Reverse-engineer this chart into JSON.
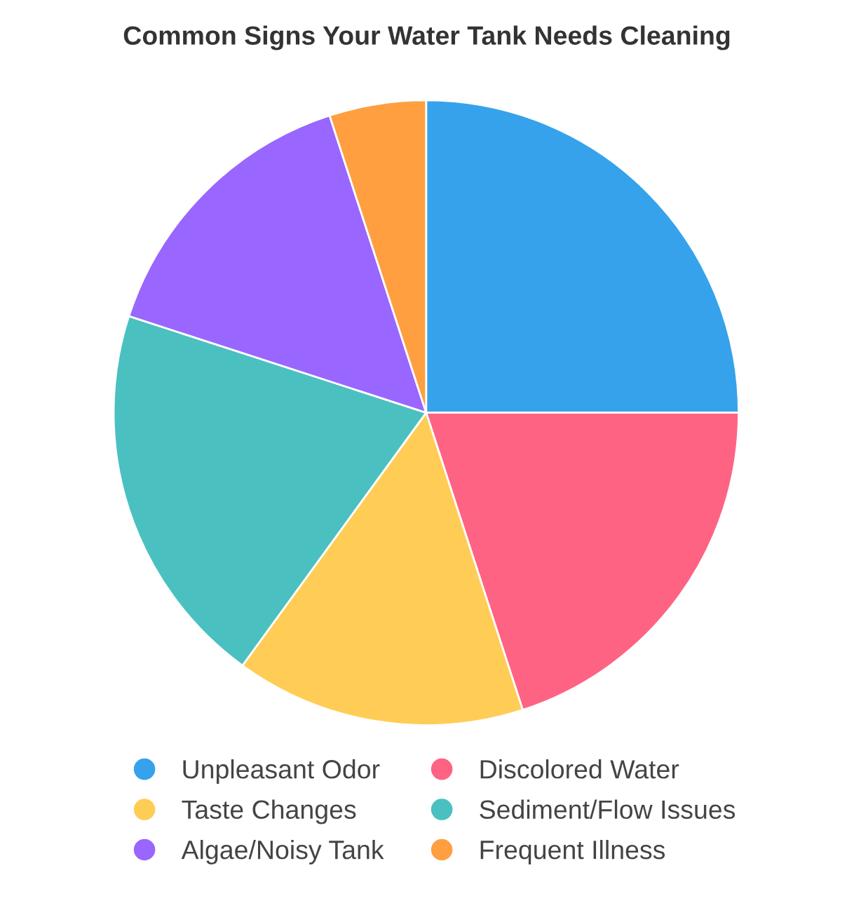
{
  "chart_data": {
    "type": "pie",
    "title": "Common Signs Your Water Tank Needs Cleaning",
    "categories": [
      "Unpleasant Odor",
      "Discolored Water",
      "Taste Changes",
      "Sediment/Flow Issues",
      "Algae/Noisy Tank",
      "Frequent Illness"
    ],
    "values": [
      25,
      20,
      15,
      20,
      15,
      5
    ],
    "colors": [
      "#36a2eb",
      "#ff6384",
      "#ffcd56",
      "#4bc0c0",
      "#9966ff",
      "#ff9f40"
    ],
    "legend": "bottom"
  }
}
